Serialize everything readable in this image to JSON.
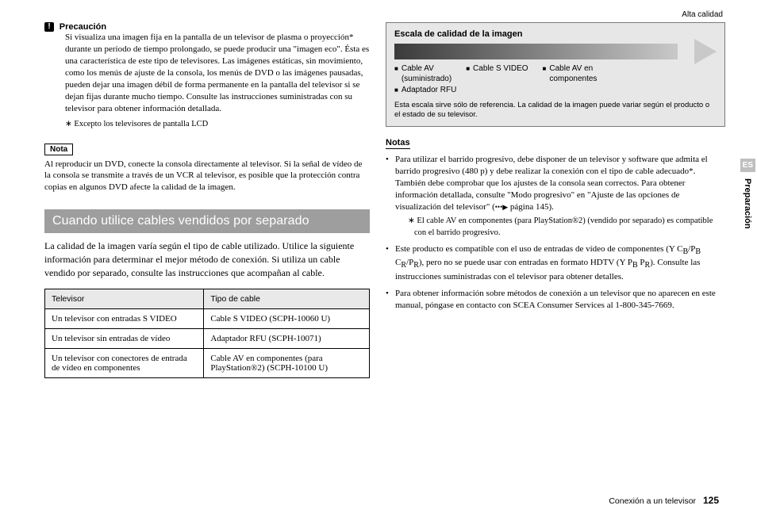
{
  "left": {
    "warn_title": "Precaución",
    "warn_body": "Si visualiza una imagen fija en la pantalla de un televisor de plasma o proyección* durante un período de tiempo prolongado, se puede producir una \"imagen eco\". Ésta es una característica de este tipo de televisores. Las imágenes estáticas, sin movimiento, como los menús de ajuste de la consola, los menús de DVD o las imágenes pausadas, pueden dejar una imagen débil de forma permanente en la pantalla del televisor si se dejan fijas durante mucho tiempo. Consulte las instrucciones suministradas con su televisor para obtener información detallada.",
    "warn_foot": "∗ Excepto los televisores de pantalla LCD",
    "nota_tag": "Nota",
    "nota_body": "Al reproducir un DVD, conecte la consola directamente al televisor. Si la señal de vídeo de la consola se transmite a través de un VCR al televisor, es posible que la protección contra copias en algunos DVD afecte la calidad de la imagen.",
    "section_title": "Cuando utilice cables vendidos por separado",
    "section_body": "La calidad de la imagen varía según el tipo de cable utilizado. Utilice la siguiente información para determinar el mejor método de conexión. Si utiliza un cable vendido por separado, consulte las instrucciones que acompañan al cable.",
    "table": {
      "headers": [
        "Televisor",
        "Tipo de cable"
      ],
      "rows": [
        [
          "Un televisor con entradas S VIDEO",
          "Cable S VIDEO (SCPH-10060 U)"
        ],
        [
          "Un televisor sin entradas de vídeo",
          "Adaptador RFU (SCPH-10071)"
        ],
        [
          "Un televisor con conectores de entrada de vídeo en componentes",
          "Cable AV en componentes (para PlayStation®2) (SCPH-10100 U)"
        ]
      ]
    }
  },
  "right": {
    "quality_title": "Escala de calidad de la imagen",
    "alta": "Alta calidad",
    "labels": {
      "av": "Cable AV",
      "av_sub": "(suministrado)",
      "svideo": "Cable S VIDEO",
      "comp": "Cable AV en",
      "comp_sub": "componentes",
      "rfu": "Adaptador RFU"
    },
    "quality_note": "Esta escala sirve sólo de referencia. La calidad de la imagen puede variar según el producto o el estado de su televisor.",
    "notas_heading": "Notas",
    "bullets": {
      "b1_pre": "Para utilizar el barrido progresivo, debe disponer de un televisor y software que admita el barrido progresivo (480 p) y debe realizar la conexión con el tipo de cable adecuado*. También debe comprobar que los ajustes de la consola sean correctos. Para obtener información detallada, consulte \"Modo progresivo\" en \"Ajuste de las opciones de visualización del televisor\" (",
      "b1_post": " página 145).",
      "b1_foot": "∗ El cable AV en componentes (para PlayStation®2) (vendido por separado) es compatible con el barrido progresivo.",
      "b2_pre": "Este producto es compatible con el uso de entradas de vídeo de componentes (Y C",
      "b2_cb": "B",
      "b2_mid1": "/P",
      "b2_pb": "B",
      "b2_mid2": " C",
      "b2_cr": "R",
      "b2_mid3": "/P",
      "b2_pr": "R",
      "b2_mid4": "), pero no se puede usar con entradas en formato HDTV (Y P",
      "b2_hpb": "B",
      "b2_mid5": " P",
      "b2_hpr": "R",
      "b2_post": "). Consulte las instrucciones suministradas con el televisor para obtener detalles.",
      "b3": "Para obtener información sobre métodos de conexión a un televisor que no aparecen en este manual, póngase en contacto con SCEA Consumer Services al 1-800-345-7669."
    }
  },
  "side": {
    "tag": "ES",
    "label": "Preparación"
  },
  "footer": {
    "text": "Conexión a un televisor",
    "page": "125"
  }
}
